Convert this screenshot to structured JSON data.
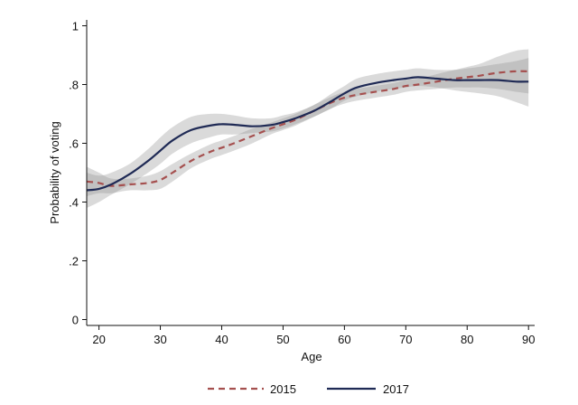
{
  "chart_data": {
    "type": "line",
    "title": "",
    "xlabel": "Age",
    "ylabel": "Probability of voting",
    "xlim": [
      18,
      91
    ],
    "ylim": [
      -0.02,
      1.02
    ],
    "xticks": [
      20,
      30,
      40,
      50,
      60,
      70,
      80,
      90
    ],
    "xtick_labels": [
      "20",
      "30",
      "40",
      "50",
      "60",
      "70",
      "80",
      "90"
    ],
    "yticks": [
      0,
      0.2,
      0.4,
      0.6,
      0.8,
      1
    ],
    "ytick_labels": [
      "0",
      ".2",
      ".4",
      ".6",
      ".8",
      "1"
    ],
    "grid": false,
    "legend_position": "bottom",
    "x": [
      18,
      20,
      22,
      25,
      28,
      30,
      32,
      35,
      38,
      40,
      42,
      45,
      48,
      50,
      52,
      55,
      58,
      60,
      62,
      65,
      68,
      70,
      72,
      75,
      78,
      80,
      82,
      85,
      88,
      90
    ],
    "series": [
      {
        "name": "2015",
        "color": "#a5504f",
        "dash": "dashed",
        "values": [
          0.47,
          0.465,
          0.455,
          0.46,
          0.465,
          0.475,
          0.5,
          0.54,
          0.57,
          0.585,
          0.6,
          0.625,
          0.65,
          0.665,
          0.68,
          0.71,
          0.74,
          0.755,
          0.765,
          0.775,
          0.785,
          0.795,
          0.8,
          0.81,
          0.82,
          0.825,
          0.83,
          0.84,
          0.845,
          0.845
        ],
        "ci_lower": [
          0.42,
          0.43,
          0.43,
          0.44,
          0.44,
          0.445,
          0.47,
          0.515,
          0.545,
          0.56,
          0.575,
          0.6,
          0.63,
          0.645,
          0.66,
          0.69,
          0.72,
          0.735,
          0.745,
          0.755,
          0.765,
          0.775,
          0.78,
          0.785,
          0.79,
          0.79,
          0.79,
          0.785,
          0.775,
          0.77
        ],
        "ci_upper": [
          0.52,
          0.5,
          0.48,
          0.48,
          0.49,
          0.505,
          0.53,
          0.565,
          0.595,
          0.61,
          0.625,
          0.65,
          0.67,
          0.685,
          0.7,
          0.73,
          0.76,
          0.775,
          0.785,
          0.795,
          0.805,
          0.815,
          0.82,
          0.835,
          0.85,
          0.86,
          0.87,
          0.895,
          0.915,
          0.92
        ]
      },
      {
        "name": "2017",
        "color": "#1f2a55",
        "dash": "solid",
        "values": [
          0.44,
          0.445,
          0.46,
          0.495,
          0.54,
          0.575,
          0.61,
          0.645,
          0.66,
          0.665,
          0.663,
          0.658,
          0.662,
          0.672,
          0.685,
          0.71,
          0.745,
          0.77,
          0.79,
          0.805,
          0.815,
          0.82,
          0.825,
          0.82,
          0.815,
          0.815,
          0.815,
          0.815,
          0.81,
          0.81
        ],
        "ci_lower": [
          0.38,
          0.4,
          0.425,
          0.46,
          0.5,
          0.53,
          0.565,
          0.6,
          0.62,
          0.63,
          0.63,
          0.635,
          0.64,
          0.65,
          0.665,
          0.69,
          0.72,
          0.745,
          0.76,
          0.775,
          0.785,
          0.79,
          0.795,
          0.79,
          0.78,
          0.775,
          0.77,
          0.76,
          0.74,
          0.725
        ],
        "ci_upper": [
          0.5,
          0.49,
          0.5,
          0.53,
          0.58,
          0.62,
          0.655,
          0.69,
          0.7,
          0.7,
          0.695,
          0.685,
          0.685,
          0.695,
          0.705,
          0.73,
          0.77,
          0.795,
          0.82,
          0.835,
          0.845,
          0.85,
          0.855,
          0.85,
          0.85,
          0.855,
          0.86,
          0.87,
          0.88,
          0.89
        ]
      }
    ]
  }
}
